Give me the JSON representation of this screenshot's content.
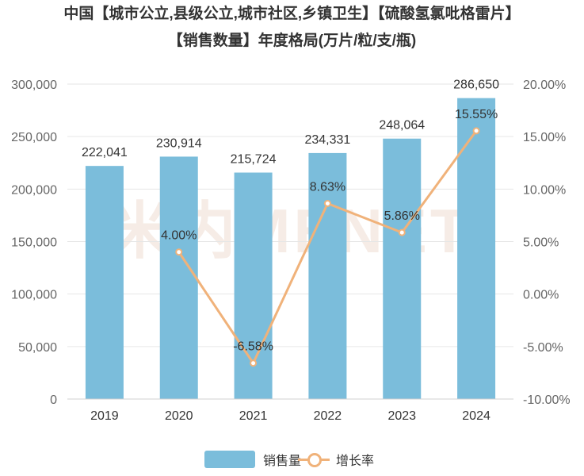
{
  "title_line1": "中国【城市公立,县级公立,城市社区,乡镇卫生】【硫酸氢氯吡格雷片】",
  "title_line2": "【销售数量】年度格局(万片/粒/支/瓶)",
  "watermark": "米内MENET",
  "colors": {
    "bar": "#7bbddb",
    "line": "#f0b27a",
    "grid": "#e6e6e6",
    "text": "#333333",
    "axis_text": "#666666"
  },
  "chart_data": {
    "type": "bar",
    "categories": [
      "2019",
      "2020",
      "2021",
      "2022",
      "2023",
      "2024"
    ],
    "series": [
      {
        "name": "销售量",
        "type": "bar",
        "axis": "left",
        "values": [
          222041,
          230914,
          215724,
          234331,
          248064,
          286650
        ],
        "labels": [
          "222,041",
          "230,914",
          "215,724",
          "234,331",
          "248,064",
          "286,650"
        ]
      },
      {
        "name": "增长率",
        "type": "line",
        "axis": "right",
        "values": [
          null,
          4.0,
          -6.58,
          8.63,
          5.86,
          15.55
        ],
        "labels": [
          "",
          "4.00%",
          "-6.58%",
          "8.63%",
          "5.86%",
          "15.55%"
        ]
      }
    ],
    "y_left": {
      "min": 0,
      "max": 300000,
      "ticks": [
        "0",
        "50,000",
        "100,000",
        "150,000",
        "200,000",
        "250,000",
        "300,000"
      ]
    },
    "y_right": {
      "min": -10,
      "max": 20,
      "ticks": [
        "-10.00%",
        "-5.00%",
        "0.00%",
        "5.00%",
        "10.00%",
        "15.00%",
        "20.00%"
      ]
    },
    "grid": true,
    "legend": {
      "position": "bottom",
      "items": [
        "销售量",
        "增长率"
      ]
    }
  }
}
